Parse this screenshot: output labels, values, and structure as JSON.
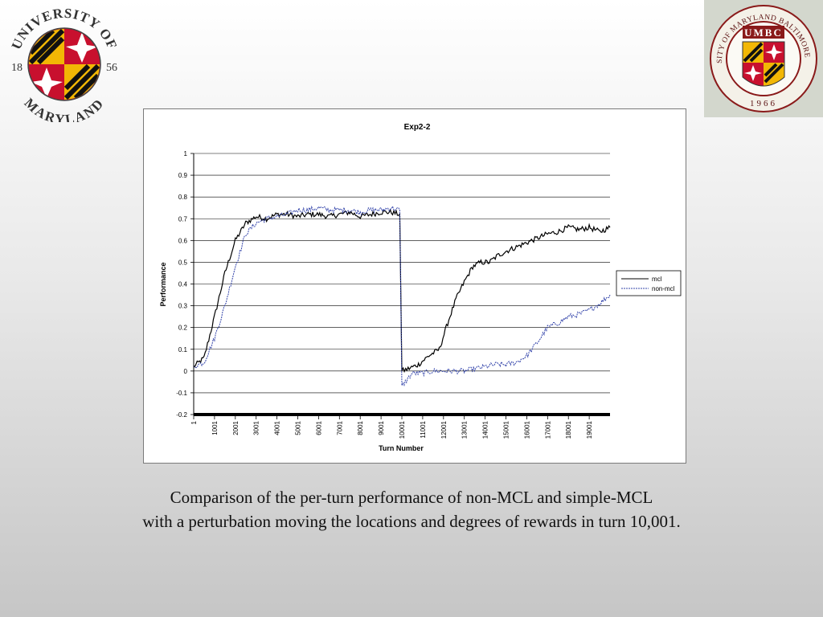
{
  "logos": {
    "left": {
      "arc_top": "UNIVERSITY OF",
      "arc_bottom": "MARYLAND",
      "year_left": "18",
      "year_right": "56"
    },
    "right": {
      "arc_top": "UNIVERSITY OF MARYLAND BALTIMORE COUNTY",
      "acronym": "UMBC",
      "year": "1966"
    }
  },
  "caption": {
    "line1": "Comparison of the per-turn performance of non-MCL and simple-MCL",
    "line2": "with a perturbation moving the locations and degrees of rewards in turn 10,001."
  },
  "chart_data": {
    "type": "line",
    "title": "Exp2-2",
    "xlabel": "Turn Number",
    "ylabel": "Performance",
    "xlim": [
      1,
      20000
    ],
    "ylim": [
      -0.2,
      1
    ],
    "x_ticks": [
      1,
      1001,
      2001,
      3001,
      4001,
      5001,
      6001,
      7001,
      8001,
      9001,
      10001,
      11001,
      12001,
      13001,
      14001,
      15001,
      16001,
      17001,
      18001,
      19001
    ],
    "y_ticks": [
      -0.2,
      -0.1,
      0,
      0.1,
      0.2,
      0.3,
      0.4,
      0.5,
      0.6,
      0.7,
      0.8,
      0.9,
      1
    ],
    "y_tick_labels": [
      "-0.2",
      "-0.1",
      "0",
      "0.1",
      "0.2",
      "0.3",
      "0.4",
      "0.5",
      "0.6",
      "0.7",
      "0.8",
      "0.9",
      "1"
    ],
    "grid": true,
    "legend": "right",
    "series": [
      {
        "name": "mcl",
        "color": "#000000",
        "dash": "solid",
        "x": [
          1,
          500,
          1000,
          1500,
          2000,
          2500,
          3000,
          3500,
          4000,
          4500,
          5000,
          5500,
          6000,
          6500,
          7000,
          7500,
          8000,
          8500,
          9000,
          9500,
          9900,
          10001,
          10300,
          10800,
          11300,
          11800,
          12200,
          12600,
          13000,
          13400,
          13800,
          14200,
          14600,
          15000,
          15500,
          16000,
          16500,
          17000,
          17500,
          18000,
          18500,
          19000,
          19500,
          20000
        ],
        "y": [
          0.02,
          0.06,
          0.25,
          0.45,
          0.6,
          0.68,
          0.71,
          0.7,
          0.72,
          0.72,
          0.71,
          0.72,
          0.72,
          0.71,
          0.72,
          0.73,
          0.71,
          0.72,
          0.73,
          0.73,
          0.72,
          0.0,
          0.01,
          0.03,
          0.07,
          0.1,
          0.22,
          0.33,
          0.41,
          0.48,
          0.5,
          0.5,
          0.53,
          0.55,
          0.57,
          0.59,
          0.61,
          0.63,
          0.64,
          0.66,
          0.65,
          0.66,
          0.64,
          0.66
        ]
      },
      {
        "name": "non-mcl",
        "color": "#3344aa",
        "dash": "dashed",
        "x": [
          1,
          500,
          1000,
          1500,
          2000,
          2500,
          3000,
          3500,
          4000,
          4500,
          5000,
          5500,
          6000,
          6500,
          7000,
          7500,
          8000,
          8500,
          9000,
          9500,
          9900,
          10001,
          10500,
          11000,
          11500,
          12000,
          12500,
          13000,
          13500,
          14000,
          14500,
          15000,
          15500,
          16000,
          16500,
          17000,
          17500,
          18000,
          18500,
          19000,
          19500,
          20000
        ],
        "y": [
          0.02,
          0.04,
          0.15,
          0.3,
          0.48,
          0.63,
          0.68,
          0.7,
          0.71,
          0.72,
          0.74,
          0.74,
          0.75,
          0.74,
          0.74,
          0.74,
          0.73,
          0.74,
          0.74,
          0.75,
          0.74,
          -0.07,
          -0.01,
          -0.01,
          0.0,
          0.0,
          0.0,
          0.0,
          0.01,
          0.02,
          0.03,
          0.03,
          0.04,
          0.07,
          0.13,
          0.2,
          0.22,
          0.25,
          0.26,
          0.28,
          0.31,
          0.35
        ]
      }
    ]
  }
}
